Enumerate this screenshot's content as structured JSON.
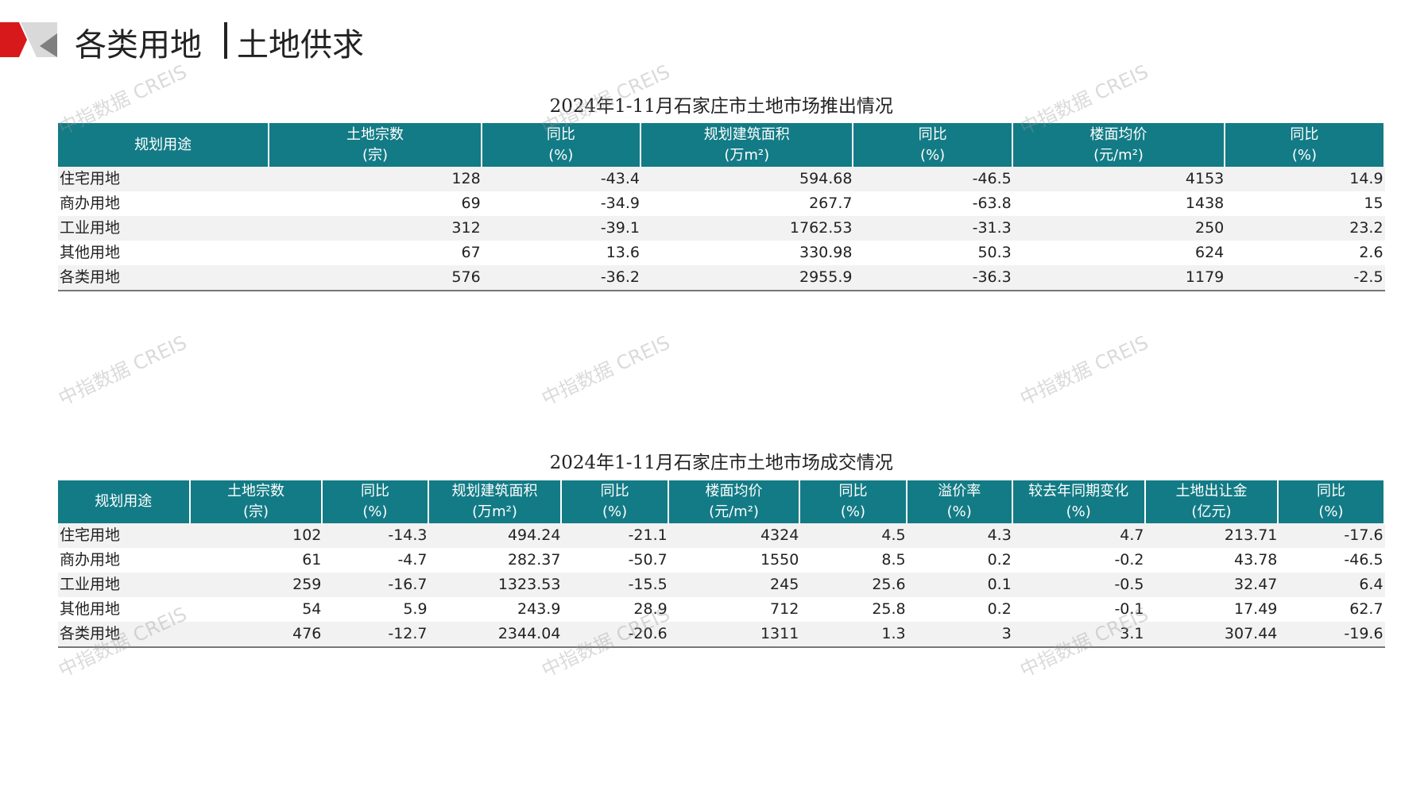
{
  "header": {
    "title": "各类用地",
    "subtitle": "土地供求"
  },
  "watermark": "中指数据 CREIS",
  "tables": [
    {
      "title": "2024年1-11月石家庄市土地市场推出情况",
      "columns": [
        {
          "name": "规划用途"
        },
        {
          "name": "土地宗数",
          "unit": "(宗)"
        },
        {
          "name": "同比",
          "unit": "(%)"
        },
        {
          "name": "规划建筑面积",
          "unit": "(万m²)"
        },
        {
          "name": "同比",
          "unit": "(%)"
        },
        {
          "name": "楼面均价",
          "unit": "(元/m²)"
        },
        {
          "name": "同比",
          "unit": "(%)"
        }
      ],
      "rows": [
        [
          "住宅用地",
          128,
          -43.4,
          594.68,
          -46.5,
          4153,
          14.9
        ],
        [
          "商办用地",
          69,
          -34.9,
          267.7,
          -63.8,
          1438,
          15
        ],
        [
          "工业用地",
          312,
          -39.1,
          1762.53,
          -31.3,
          250,
          23.2
        ],
        [
          "其他用地",
          67,
          13.6,
          330.98,
          50.3,
          624,
          2.6
        ],
        [
          "各类用地",
          576,
          -36.2,
          2955.9,
          -36.3,
          1179,
          -2.5
        ]
      ]
    },
    {
      "title": "2024年1-11月石家庄市土地市场成交情况",
      "columns": [
        {
          "name": "规划用途"
        },
        {
          "name": "土地宗数",
          "unit": "(宗)"
        },
        {
          "name": "同比",
          "unit": "(%)"
        },
        {
          "name": "规划建筑面积",
          "unit": "(万m²)"
        },
        {
          "name": "同比",
          "unit": "(%)"
        },
        {
          "name": "楼面均价",
          "unit": "(元/m²)"
        },
        {
          "name": "同比",
          "unit": "(%)"
        },
        {
          "name": "溢价率",
          "unit": "(%)"
        },
        {
          "name": "较去年同期变化",
          "unit": "(%)"
        },
        {
          "name": "土地出让金",
          "unit": "(亿元)"
        },
        {
          "name": "同比",
          "unit": "(%)"
        }
      ],
      "rows": [
        [
          "住宅用地",
          102,
          -14.3,
          494.24,
          -21.1,
          4324,
          4.5,
          4.3,
          4.7,
          213.71,
          -17.6
        ],
        [
          "商办用地",
          61,
          -4.7,
          282.37,
          -50.7,
          1550,
          8.5,
          0.2,
          -0.2,
          43.78,
          -46.5
        ],
        [
          "工业用地",
          259,
          -16.7,
          1323.53,
          -15.5,
          245,
          25.6,
          0.1,
          -0.5,
          32.47,
          6.4
        ],
        [
          "其他用地",
          54,
          5.9,
          243.9,
          28.9,
          712,
          25.8,
          0.2,
          -0.1,
          17.49,
          62.7
        ],
        [
          "各类用地",
          476,
          -12.7,
          2344.04,
          -20.6,
          1311,
          1.3,
          3,
          3.1,
          307.44,
          -19.6
        ]
      ]
    }
  ]
}
